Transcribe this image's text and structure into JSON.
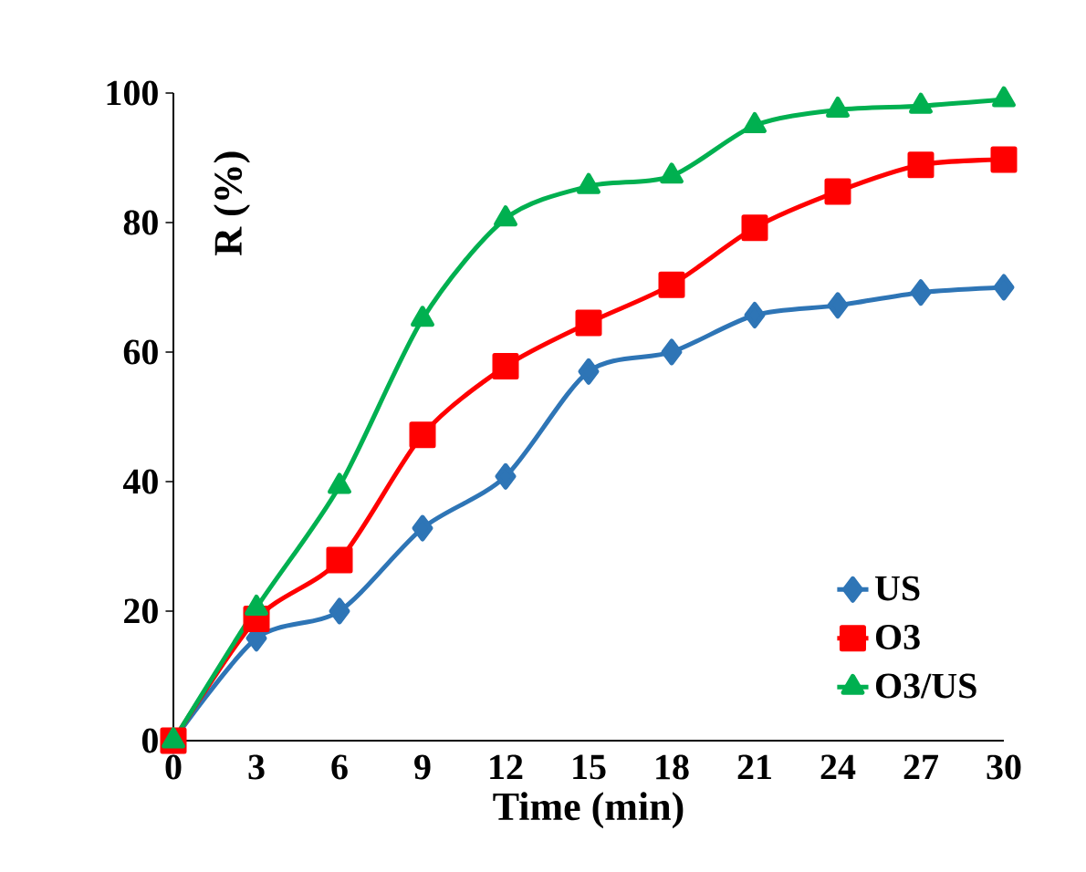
{
  "chart_data": {
    "type": "line",
    "xlabel": "Time (min)",
    "ylabel": "R (%)",
    "x": [
      0,
      3,
      6,
      9,
      12,
      15,
      18,
      21,
      24,
      27,
      30
    ],
    "series": [
      {
        "name": "US",
        "color": "#2e75b6",
        "marker": "diamond",
        "values": [
          0,
          15.8,
          20,
          32.8,
          40.8,
          57,
          60,
          65.7,
          67.2,
          69.2,
          70
        ]
      },
      {
        "name": "O3",
        "color": "#ff0000",
        "marker": "square",
        "values": [
          0,
          18.8,
          27.9,
          47.2,
          57.8,
          64.5,
          70.4,
          79.2,
          84.8,
          88.9,
          89.7
        ]
      },
      {
        "name": "O3/US",
        "color": "#00b050",
        "marker": "triangle",
        "values": [
          0,
          20.5,
          39.3,
          65.1,
          80.6,
          85.6,
          87.2,
          95,
          97.4,
          98,
          99
        ]
      }
    ],
    "xlim": [
      0,
      30
    ],
    "ylim": [
      0,
      100
    ],
    "xticks": [
      0,
      3,
      6,
      9,
      12,
      15,
      18,
      21,
      24,
      27,
      30
    ],
    "yticks": [
      0,
      20,
      40,
      60,
      80,
      100
    ],
    "legend": "bottom right",
    "grid": false,
    "line_style": "solid"
  }
}
